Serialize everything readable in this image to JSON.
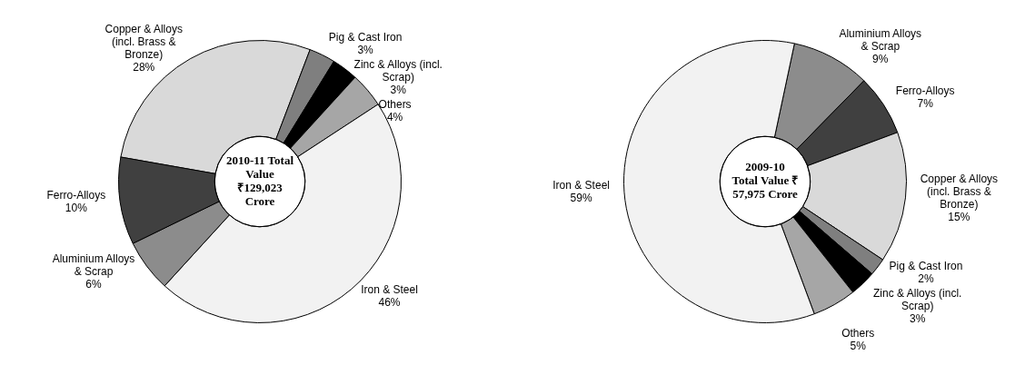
{
  "chart_data": [
    {
      "type": "donut",
      "title": "2010-11 Total Value ₹129,023 Crore",
      "categories": [
        "Copper & Alloys (incl. Brass & Bronze)",
        "Pig & Cast Iron",
        "Zinc & Alloys (incl. Scrap)",
        "Others",
        "Iron & Steel",
        "Aluminium Alloys & Scrap",
        "Ferro-Alloys"
      ],
      "values": [
        28,
        3,
        3,
        4,
        46,
        6,
        10
      ],
      "colors": [
        "#d9d9d9",
        "#7f7f7f",
        "#000000",
        "#a6a6a6",
        "#f2f2f2",
        "#8c8c8c",
        "#404040"
      ],
      "value_labels": [
        "28%",
        "3%",
        "3%",
        "4%",
        "46%",
        "6%",
        "10%"
      ]
    },
    {
      "type": "donut",
      "title": "2009-10 Total Value ₹ 57,975 Crore",
      "categories": [
        "Aluminium Alloys & Scrap",
        "Ferro-Alloys",
        "Copper & Alloys (incl. Brass & Bronze)",
        "Pig & Cast Iron",
        "Zinc & Alloys (incl. Scrap)",
        "Others",
        "Iron & Steel"
      ],
      "values": [
        9,
        7,
        15,
        2,
        3,
        5,
        59
      ],
      "colors": [
        "#8c8c8c",
        "#404040",
        "#d9d9d9",
        "#7f7f7f",
        "#000000",
        "#a6a6a6",
        "#f2f2f2"
      ],
      "value_labels": [
        "9%",
        "7%",
        "15%",
        "2%",
        "3%",
        "5%",
        "59%"
      ]
    }
  ]
}
